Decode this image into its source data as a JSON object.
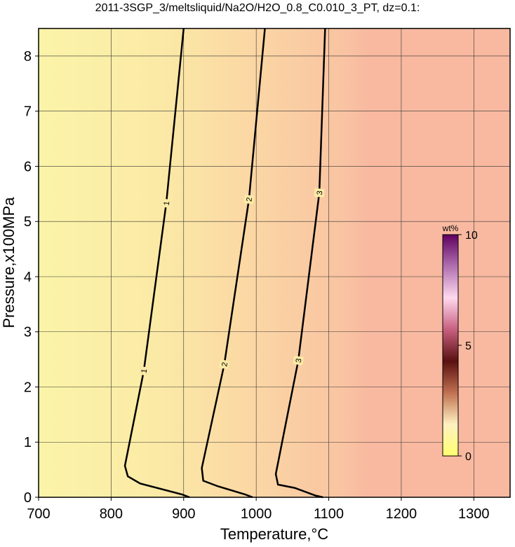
{
  "chart_data": {
    "type": "contour",
    "title": "2011-3SGP_3/meltsliquid/Na2O/H2O_0.8_C0.010_3_PT, dz=0.1:",
    "x_label": "Temperature,°C",
    "y_label": "Pressure,x100MPa",
    "xlim": [
      700,
      1350
    ],
    "ylim": [
      0,
      8.5
    ],
    "xticks": [
      700,
      800,
      900,
      1000,
      1100,
      1200,
      1300
    ],
    "yticks": [
      0,
      1,
      2,
      3,
      4,
      5,
      6,
      7,
      8
    ],
    "grid": true,
    "contours": [
      {
        "level": 1,
        "x": [
          900,
          876,
          845,
          819,
          823,
          840,
          898,
          908
        ],
        "y": [
          8.5,
          5.33,
          2.29,
          0.57,
          0.38,
          0.25,
          0.05,
          0
        ]
      },
      {
        "level": 2,
        "x": [
          1012,
          990,
          956,
          925,
          927,
          947,
          985,
          995
        ],
        "y": [
          8.5,
          5.4,
          2.41,
          0.53,
          0.3,
          0.2,
          0.05,
          0
        ]
      },
      {
        "level": 3,
        "x": [
          1095,
          1087,
          1058,
          1027,
          1030,
          1053,
          1082,
          1092
        ],
        "y": [
          8.5,
          5.52,
          2.48,
          0.42,
          0.23,
          0.17,
          0.03,
          0
        ]
      }
    ],
    "colorbar": {
      "label": "wt%",
      "lim": [
        0,
        10
      ],
      "ticks": [
        0,
        5,
        10
      ],
      "colors": [
        "#ffff70",
        "#fff0c0",
        "#c07050",
        "#5a1010",
        "#c86080",
        "#ffd8ee",
        "#b070b0",
        "#600060"
      ]
    }
  }
}
